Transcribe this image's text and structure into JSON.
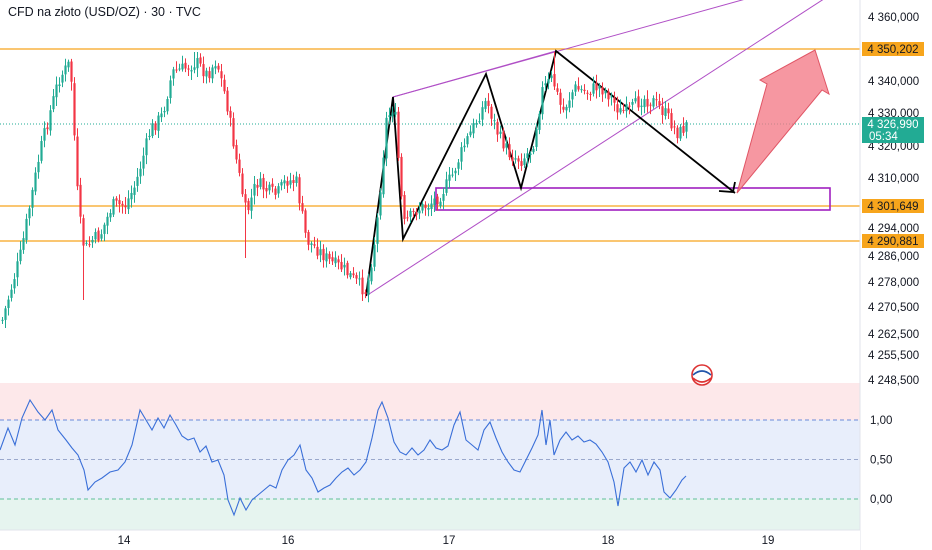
{
  "chart_data": [
    {
      "type": "candlestick",
      "title": "CFD na złoto (USD/OZ) · 30 · TVC",
      "x_tick_labels": [
        "14",
        "16",
        "17",
        "18",
        "19"
      ],
      "y_tick_labels": [
        "4 360,000",
        "4 340,000",
        "4 330,000",
        "4 320,000",
        "4 310,000",
        "4 294,000",
        "4 286,000",
        "4 278,000",
        "4 270,500",
        "4 262,500",
        "4 255,500",
        "4 248,500"
      ],
      "ylim": [
        4248.5,
        4365
      ],
      "price_levels": [
        {
          "label": "4 350,202",
          "value": 4350.202,
          "color": "#f7a51c"
        },
        {
          "label": "4 301,649",
          "value": 4301.649,
          "color": "#f7a51c"
        },
        {
          "label": "4 290,881",
          "value": 4290.881,
          "color": "#f7a51c"
        }
      ],
      "last_price": {
        "label": "4 326,990",
        "value": 4326.99,
        "countdown": "05:34",
        "color": "#22ab94"
      },
      "series": [
        {
          "up_color": "#22ab94",
          "down_color": "#f23645"
        }
      ],
      "annotations": [
        {
          "type": "ascending-channel",
          "color": "#b04fc6"
        },
        {
          "type": "zigzag-pattern",
          "color": "#000000"
        },
        {
          "type": "rectangle-zone",
          "color": "#a020c0",
          "range": [
            4301.649,
            4306.5
          ]
        },
        {
          "type": "arrow-up",
          "color": "#f56f7c"
        }
      ]
    },
    {
      "type": "line",
      "y_tick_labels": [
        "1,00",
        "0,50",
        "0,00"
      ],
      "ylim": [
        -0.42,
        1.45
      ],
      "bands": {
        "overbought": 1.0,
        "mid": 0.5,
        "oversold": 0.0
      },
      "series": [
        {
          "color": "#3a6fd8"
        }
      ]
    }
  ]
}
